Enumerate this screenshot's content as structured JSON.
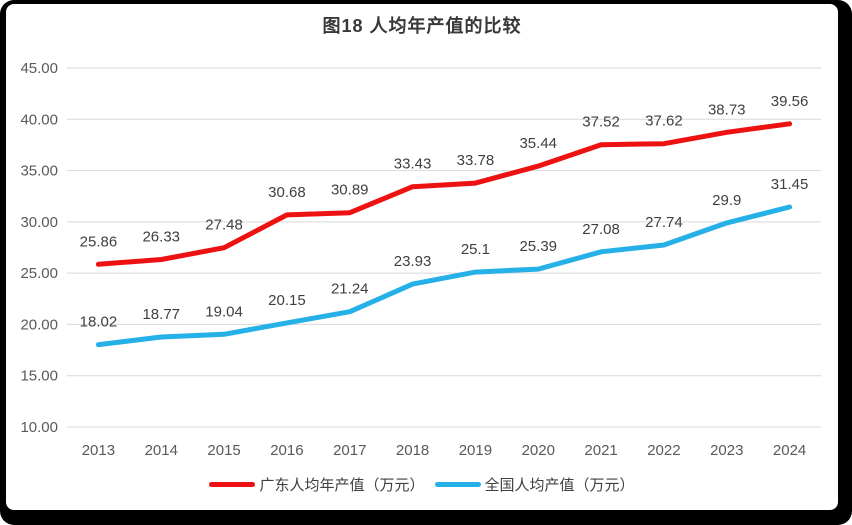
{
  "frame": {
    "border_color": "#000000",
    "background_color": "#ffffff"
  },
  "styles": {
    "grid_color": "#d9d9d9",
    "axis_text_color": "#595959",
    "data_label_color": "#404040",
    "title_color": "#383838"
  },
  "chart_data": {
    "type": "line",
    "title": "图18 人均年产值的比较",
    "categories": [
      "2013",
      "2014",
      "2015",
      "2016",
      "2017",
      "2018",
      "2019",
      "2020",
      "2021",
      "2022",
      "2023",
      "2024"
    ],
    "series": [
      {
        "name": "广东人均年产值（万元）",
        "color": "#ee1111",
        "values": [
          25.86,
          26.33,
          27.48,
          30.68,
          30.89,
          33.43,
          33.78,
          35.44,
          37.52,
          37.62,
          38.73,
          39.56
        ],
        "labels": [
          "25.86",
          "26.33",
          "27.48",
          "30.68",
          "30.89",
          "33.43",
          "33.78",
          "35.44",
          "37.52",
          "37.62",
          "38.73",
          "39.56"
        ]
      },
      {
        "name": "全国人均产值（万元）",
        "color": "#25b0e8",
        "values": [
          18.02,
          18.77,
          19.04,
          20.15,
          21.24,
          23.93,
          25.1,
          25.39,
          27.08,
          27.74,
          29.9,
          31.45
        ],
        "labels": [
          "18.02",
          "18.77",
          "19.04",
          "20.15",
          "21.24",
          "23.93",
          "25.1",
          "25.39",
          "27.08",
          "27.74",
          "29.9",
          "31.45"
        ]
      }
    ],
    "y_axis": {
      "min": 10,
      "max": 45,
      "step": 5,
      "tick_labels": [
        "45.00",
        "40.00",
        "35.00",
        "30.00",
        "25.00",
        "20.00",
        "15.00",
        "10.00"
      ]
    },
    "grid": true,
    "data_labels": true,
    "legend_position": "bottom"
  }
}
